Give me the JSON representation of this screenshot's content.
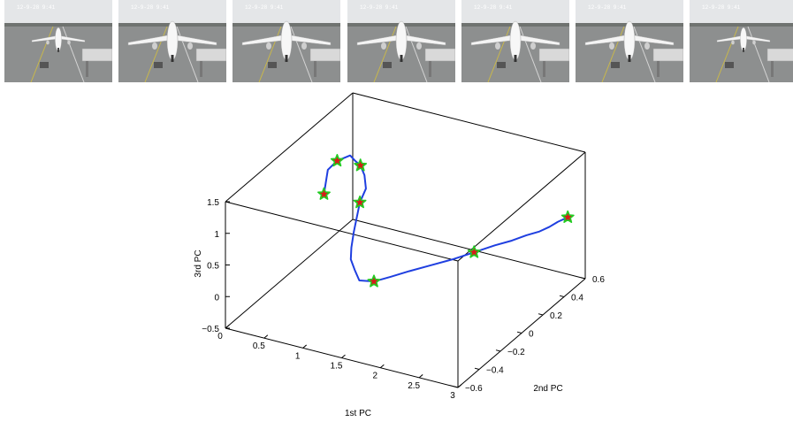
{
  "frames": [
    {
      "caption": "12-9-28  9:41"
    },
    {
      "caption": "12-9-28  9:41"
    },
    {
      "caption": "12-9-28  9:41"
    },
    {
      "caption": "12-9-28  9:41"
    },
    {
      "caption": "12-9-28  9:41"
    },
    {
      "caption": "12-9-28  9:41"
    },
    {
      "caption": "12-9-28  9:41"
    }
  ],
  "chart_data": {
    "type": "line",
    "projection": "3d",
    "xlabel": "1st PC",
    "ylabel": "2nd PC",
    "zlabel": "3rd PC",
    "xlim": [
      0,
      3
    ],
    "ylim": [
      -0.6,
      0.6
    ],
    "zlim": [
      -0.5,
      1.5
    ],
    "xticks": [
      "0",
      "0.5",
      "1",
      "1.5",
      "2",
      "2.5",
      "3"
    ],
    "yticks": [
      "−0.6",
      "−0.4",
      "−0.2",
      "0",
      "0.2",
      "0.4",
      "0.6"
    ],
    "zticks": [
      "−0.5",
      "0",
      "0.5",
      "1",
      "1.5"
    ],
    "grid": false,
    "box": true,
    "series": [
      {
        "color": "#1f3fe0",
        "x": [
          0.45,
          0.5,
          0.62,
          0.76,
          0.82,
          0.92,
          1.0,
          1.06,
          1.05,
          1.04,
          1.05,
          1.07,
          1.12,
          1.18,
          1.3,
          1.45,
          1.62,
          1.82,
          2.05,
          2.25,
          2.45,
          2.6,
          2.72,
          2.82,
          2.88,
          2.92,
          2.98
        ],
        "y": [
          0.0,
          0.0,
          0.0,
          0.02,
          0.02,
          0.0,
          -0.02,
          -0.05,
          -0.1,
          -0.15,
          -0.18,
          -0.2,
          -0.2,
          -0.2,
          -0.15,
          -0.1,
          -0.05,
          0.0,
          0.05,
          0.1,
          0.15,
          0.2,
          0.25,
          0.3,
          0.35,
          0.4,
          0.45
        ],
        "z": [
          0.9,
          1.3,
          1.48,
          1.58,
          1.52,
          1.5,
          1.4,
          1.25,
          1.1,
          0.7,
          0.5,
          0.35,
          0.2,
          0.05,
          0.0,
          0.05,
          0.12,
          0.2,
          0.3,
          0.4,
          0.5,
          0.55,
          0.6,
          0.62,
          0.64,
          0.66,
          0.68
        ]
      }
    ],
    "keyframes": {
      "x": [
        0.45,
        0.62,
        0.92,
        1.05,
        1.3,
        2.25,
        2.98
      ],
      "y": [
        0.0,
        0.0,
        0.0,
        -0.1,
        -0.15,
        0.1,
        0.45
      ],
      "z": [
        0.9,
        1.48,
        1.5,
        1.1,
        0.0,
        0.4,
        0.68
      ],
      "marker": "star",
      "fill": "#d91a1a",
      "edge": "#22cc22"
    }
  }
}
